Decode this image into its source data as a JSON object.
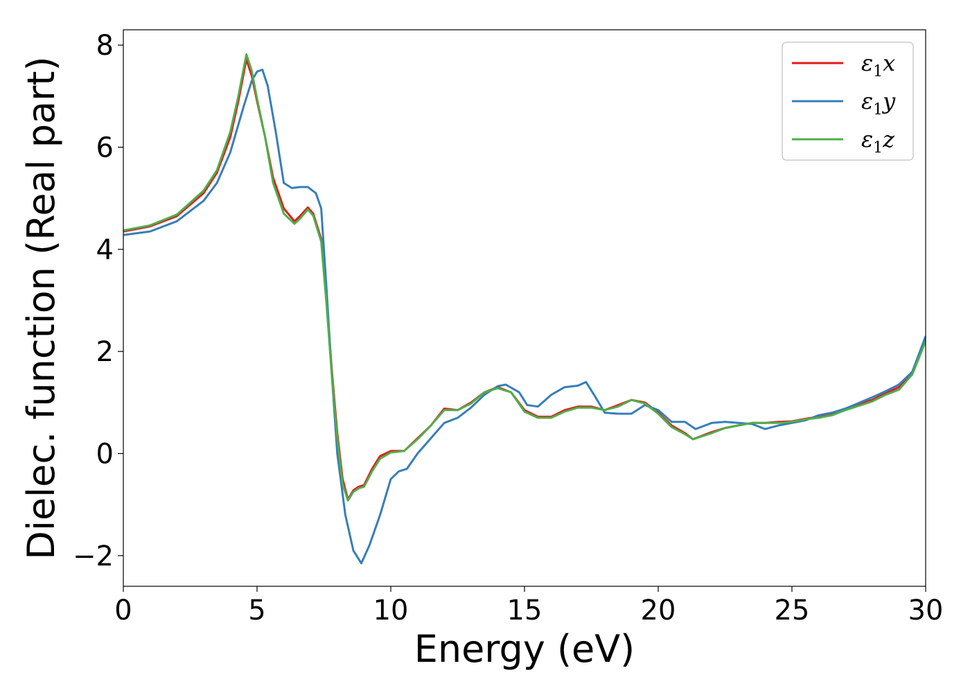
{
  "chart_data": {
    "type": "line",
    "title": "",
    "xlabel": "Energy (eV)",
    "ylabel": "Dielec. function (Real part)",
    "xlim": [
      0,
      30
    ],
    "ylim": [
      -2.6,
      8.3
    ],
    "xticks": [
      0,
      5,
      10,
      15,
      20,
      25,
      30
    ],
    "yticks": [
      -2,
      0,
      2,
      4,
      6,
      8
    ],
    "grid": false,
    "legend_position": "top-right",
    "series": [
      {
        "name": "ε1x",
        "legend_base": "ε",
        "legend_sub": "1",
        "legend_suffix": "x",
        "color": "#e41a1c",
        "x": [
          0,
          1,
          2,
          3,
          3.5,
          4,
          4.3,
          4.6,
          4.8,
          5.0,
          5.3,
          5.6,
          6.0,
          6.4,
          6.6,
          6.9,
          7.1,
          7.4,
          7.6,
          7.8,
          8.0,
          8.2,
          8.4,
          8.6,
          8.8,
          9.0,
          9.3,
          9.6,
          10.0,
          10.5,
          11.0,
          11.5,
          12.0,
          12.5,
          13.0,
          13.5,
          14.0,
          14.5,
          15.0,
          15.5,
          16.0,
          16.5,
          17.0,
          17.5,
          18.0,
          18.5,
          19.0,
          19.5,
          20.0,
          20.5,
          21.0,
          21.3,
          22.0,
          22.5,
          23.0,
          23.5,
          24.0,
          24.5,
          25.0,
          25.5,
          26.0,
          26.5,
          27.0,
          28.0,
          28.5,
          29.0,
          29.5,
          30.0
        ],
        "y": [
          4.35,
          4.45,
          4.65,
          5.1,
          5.5,
          6.2,
          6.9,
          7.72,
          7.4,
          6.9,
          6.2,
          5.4,
          4.8,
          4.55,
          4.65,
          4.82,
          4.7,
          4.2,
          3.0,
          1.6,
          0.4,
          -0.5,
          -0.9,
          -0.72,
          -0.65,
          -0.62,
          -0.3,
          -0.05,
          0.05,
          0.05,
          0.3,
          0.55,
          0.88,
          0.85,
          1.0,
          1.2,
          1.3,
          1.2,
          0.85,
          0.72,
          0.72,
          0.85,
          0.92,
          0.92,
          0.85,
          0.95,
          1.05,
          1.0,
          0.8,
          0.55,
          0.4,
          0.28,
          0.42,
          0.5,
          0.55,
          0.6,
          0.6,
          0.62,
          0.63,
          0.68,
          0.72,
          0.78,
          0.88,
          1.05,
          1.18,
          1.3,
          1.6,
          2.25
        ]
      },
      {
        "name": "ε1y",
        "legend_base": "ε",
        "legend_sub": "1",
        "legend_suffix": "y",
        "color": "#377eb8",
        "x": [
          0,
          1,
          2,
          3,
          3.5,
          4,
          4.5,
          4.8,
          5.0,
          5.2,
          5.4,
          5.7,
          6.0,
          6.3,
          6.6,
          6.9,
          7.2,
          7.4,
          7.6,
          7.8,
          8.0,
          8.3,
          8.6,
          8.9,
          9.2,
          9.6,
          10.0,
          10.3,
          10.6,
          11.0,
          11.5,
          12.0,
          12.5,
          13.0,
          13.5,
          14.0,
          14.3,
          14.8,
          15.1,
          15.5,
          16.0,
          16.5,
          17.0,
          17.3,
          17.6,
          18.0,
          18.5,
          19.0,
          19.5,
          20.0,
          20.5,
          21.0,
          21.4,
          22.0,
          22.5,
          23.0,
          23.5,
          24.0,
          24.5,
          25.0,
          25.5,
          26.0,
          26.5,
          27.0,
          28.0,
          28.5,
          29.0,
          29.5,
          30.0
        ],
        "y": [
          4.28,
          4.35,
          4.55,
          4.95,
          5.3,
          5.9,
          6.8,
          7.3,
          7.48,
          7.52,
          7.2,
          6.3,
          5.3,
          5.2,
          5.22,
          5.22,
          5.1,
          4.8,
          3.2,
          1.5,
          0.0,
          -1.2,
          -1.9,
          -2.15,
          -1.8,
          -1.2,
          -0.5,
          -0.35,
          -0.3,
          0.0,
          0.3,
          0.6,
          0.7,
          0.9,
          1.15,
          1.32,
          1.35,
          1.2,
          0.95,
          0.92,
          1.15,
          1.3,
          1.33,
          1.4,
          1.15,
          0.8,
          0.78,
          0.78,
          0.95,
          0.85,
          0.62,
          0.62,
          0.48,
          0.6,
          0.62,
          0.6,
          0.58,
          0.48,
          0.55,
          0.6,
          0.65,
          0.75,
          0.8,
          0.88,
          1.1,
          1.22,
          1.35,
          1.6,
          2.3
        ]
      },
      {
        "name": "ε1z",
        "legend_base": "ε",
        "legend_sub": "1",
        "legend_suffix": "z",
        "color": "#4daf4a",
        "x": [
          0,
          1,
          2,
          3,
          3.5,
          4,
          4.3,
          4.6,
          4.8,
          5.0,
          5.3,
          5.6,
          6.0,
          6.4,
          6.6,
          6.9,
          7.1,
          7.4,
          7.6,
          7.8,
          8.0,
          8.2,
          8.4,
          8.6,
          8.8,
          9.0,
          9.3,
          9.6,
          10.0,
          10.5,
          11.0,
          11.5,
          12.0,
          12.5,
          13.0,
          13.5,
          14.0,
          14.5,
          15.0,
          15.5,
          16.0,
          16.5,
          17.0,
          17.5,
          18.0,
          18.5,
          19.0,
          19.5,
          20.0,
          20.5,
          21.0,
          21.3,
          22.0,
          22.5,
          23.0,
          23.5,
          24.0,
          24.5,
          25.0,
          25.5,
          26.0,
          26.5,
          27.0,
          28.0,
          28.5,
          29.0,
          29.5,
          30.0
        ],
        "y": [
          4.37,
          4.47,
          4.68,
          5.15,
          5.55,
          6.3,
          7.0,
          7.82,
          7.5,
          6.95,
          6.2,
          5.3,
          4.7,
          4.5,
          4.6,
          4.78,
          4.66,
          4.15,
          2.9,
          1.5,
          0.3,
          -0.6,
          -0.92,
          -0.75,
          -0.68,
          -0.65,
          -0.35,
          -0.1,
          0.02,
          0.05,
          0.28,
          0.55,
          0.85,
          0.85,
          0.98,
          1.2,
          1.28,
          1.2,
          0.82,
          0.7,
          0.7,
          0.82,
          0.9,
          0.9,
          0.85,
          0.92,
          1.05,
          0.98,
          0.78,
          0.52,
          0.38,
          0.28,
          0.4,
          0.5,
          0.55,
          0.6,
          0.6,
          0.6,
          0.62,
          0.67,
          0.7,
          0.75,
          0.85,
          1.02,
          1.15,
          1.25,
          1.55,
          2.2
        ]
      }
    ]
  }
}
